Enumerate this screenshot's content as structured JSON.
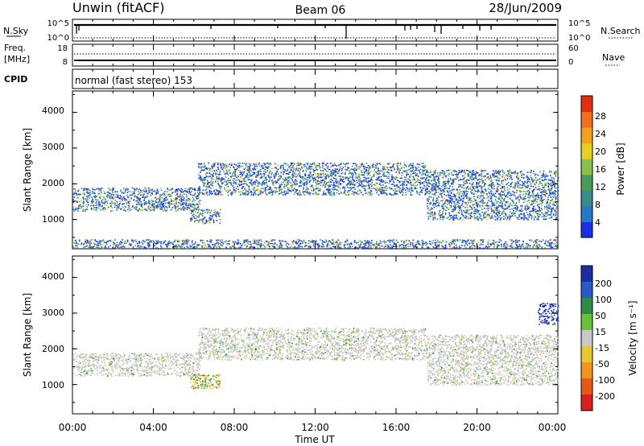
{
  "header": {
    "site": "Unwin (fitACF)",
    "beam": "Beam 06",
    "date": "28/Jun/2009"
  },
  "noise_panel": {
    "left_label": "N.Sky",
    "left_ticks": [
      "10^5",
      "10^0"
    ],
    "right_label": "N.Search",
    "right_ticks": [
      "10^5",
      "10^0"
    ]
  },
  "freq_panel": {
    "left_label_1": "Freq.",
    "left_label_2": "[MHz]",
    "left_ticks": [
      "18",
      "8"
    ],
    "right_label": "Nave",
    "right_ticks": [
      "60",
      "0"
    ]
  },
  "cpid": {
    "label": "CPID",
    "text": "normal (fast stereo) 153"
  },
  "x_axis": {
    "label": "Time UT",
    "ticks": [
      "00:00",
      "04:00",
      "08:00",
      "12:00",
      "16:00",
      "20:00",
      "00:00"
    ]
  },
  "power_panel": {
    "ylabel": "Slant Range [km]",
    "yticks": [
      "1000",
      "2000",
      "3000",
      "4000"
    ],
    "colorbar_label": "Power [dB]",
    "colorbar_ticks": [
      "4",
      "8",
      "12",
      "16",
      "20",
      "24",
      "28"
    ]
  },
  "velocity_panel": {
    "ylabel": "Slant Range [km]",
    "yticks": [
      "1000",
      "2000",
      "3000",
      "4000"
    ],
    "colorbar_label": "Velocity [m s⁻¹]",
    "colorbar_ticks": [
      "200",
      "100",
      "50",
      "15",
      "-15",
      "-50",
      "-100",
      "-200"
    ]
  },
  "chart_data": [
    {
      "type": "heatmap",
      "title": "Power",
      "xlabel": "Time UT",
      "ylabel": "Slant Range [km]",
      "xlim": [
        "00:00",
        "24:00"
      ],
      "ylim": [
        180,
        4600
      ],
      "colorbar": {
        "label": "Power [dB]",
        "range": [
          0,
          32
        ],
        "ticks": [
          4,
          8,
          12,
          16,
          20,
          24,
          28
        ],
        "colors": [
          "#1a2fe6",
          "#2878c8",
          "#3a8a8a",
          "#4a9a5a",
          "#8ac050",
          "#e8d020",
          "#f2a020",
          "#ee7020",
          "#e03010"
        ]
      },
      "echo_regions": [
        {
          "t_start": 0.0,
          "t_end": 6.3,
          "range_lo": 1250,
          "range_hi": 1900
        },
        {
          "t_start": 5.8,
          "t_end": 7.3,
          "range_lo": 900,
          "range_hi": 1300
        },
        {
          "t_start": 6.2,
          "t_end": 17.5,
          "range_lo": 1700,
          "range_hi": 2600
        },
        {
          "t_start": 17.5,
          "t_end": 24.0,
          "range_lo": 1000,
          "range_hi": 2400
        },
        {
          "t_start": 0.0,
          "t_end": 24.0,
          "range_lo": 200,
          "range_hi": 450
        }
      ]
    },
    {
      "type": "heatmap",
      "title": "Velocity",
      "xlabel": "Time UT",
      "ylabel": "Slant Range [km]",
      "xlim": [
        "00:00",
        "24:00"
      ],
      "ylim": [
        180,
        4600
      ],
      "colorbar": {
        "label": "Velocity [m s⁻¹]",
        "range": [
          -250,
          250
        ],
        "ticks": [
          200,
          100,
          50,
          15,
          -15,
          -50,
          -100,
          -200
        ],
        "colors": [
          "#1a2ea0",
          "#2a5ac8",
          "#2e8a4a",
          "#6ac038",
          "#c8c8c8",
          "#e8c830",
          "#f0961e",
          "#e85a14",
          "#dc1e1e"
        ]
      },
      "echo_regions": [
        {
          "t_start": 0.0,
          "t_end": 6.3,
          "range_lo": 1250,
          "range_hi": 1900,
          "dominant": "-15..15"
        },
        {
          "t_start": 5.8,
          "t_end": 7.3,
          "range_lo": 900,
          "range_hi": 1300,
          "dominant": "mixed"
        },
        {
          "t_start": 6.2,
          "t_end": 17.5,
          "range_lo": 1700,
          "range_hi": 2600,
          "dominant": "-15..15"
        },
        {
          "t_start": 17.5,
          "t_end": 24.0,
          "range_lo": 1000,
          "range_hi": 2400,
          "dominant": "-15..15"
        },
        {
          "t_start": 23.0,
          "t_end": 24.0,
          "range_lo": 2700,
          "range_hi": 3300,
          "dominant": "200"
        }
      ]
    }
  ],
  "colors": {
    "background": "#ffffff",
    "axis": "#000000"
  }
}
